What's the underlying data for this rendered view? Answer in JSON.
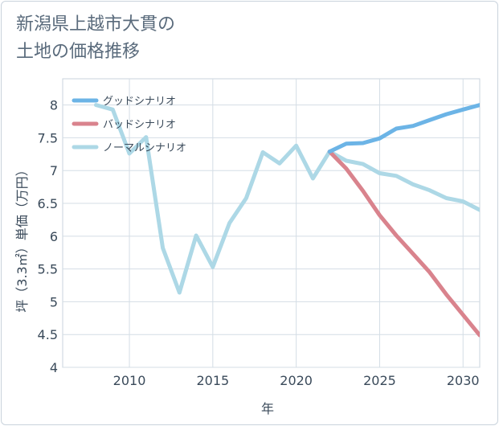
{
  "title_line1": "新潟県上越市大貫の",
  "title_line2": "土地の価格推移",
  "chart_data": {
    "type": "line",
    "xlabel": "年",
    "ylabel": "坪（3.3㎡）単価（万円）",
    "xlim": [
      2006,
      2031
    ],
    "ylim": [
      4,
      8.4
    ],
    "x_ticks": [
      2010,
      2015,
      2020,
      2025,
      2030
    ],
    "y_ticks": [
      4,
      4.5,
      5,
      5.5,
      6,
      6.5,
      7,
      7.5,
      8
    ],
    "y_tick_labels": [
      "4",
      "4.5",
      "5",
      "5.5",
      "6",
      "6.5",
      "7",
      "7.5",
      "8"
    ],
    "grid": true,
    "legend_position": "top-left",
    "series": [
      {
        "name": "グッドシナリオ",
        "color": "#6cb4e6",
        "x": [
          2022,
          2023,
          2024,
          2025,
          2026,
          2027,
          2028,
          2029,
          2030,
          2031
        ],
        "values": [
          7.29,
          7.41,
          7.42,
          7.49,
          7.64,
          7.68,
          7.77,
          7.86,
          7.93,
          8.0
        ]
      },
      {
        "name": "バッドシナリオ",
        "color": "#d9838d",
        "x": [
          2022,
          2023,
          2024,
          2025,
          2026,
          2027,
          2028,
          2029,
          2030,
          2031
        ],
        "values": [
          7.29,
          7.03,
          6.69,
          6.32,
          6.01,
          5.73,
          5.45,
          5.11,
          4.8,
          4.49
        ]
      },
      {
        "name": "ノーマルシナリオ",
        "color": "#add8e6",
        "x": [
          2008,
          2009,
          2010,
          2011,
          2012,
          2013,
          2014,
          2015,
          2016,
          2017,
          2018,
          2019,
          2020,
          2021,
          2022,
          2023,
          2024,
          2025,
          2026,
          2027,
          2028,
          2029,
          2030,
          2031
        ],
        "values": [
          8.0,
          7.93,
          7.26,
          7.51,
          5.82,
          5.14,
          6.01,
          5.53,
          6.2,
          6.58,
          7.28,
          7.11,
          7.38,
          6.88,
          7.29,
          7.15,
          7.1,
          6.96,
          6.92,
          6.79,
          6.7,
          6.58,
          6.53,
          6.4
        ]
      }
    ]
  }
}
